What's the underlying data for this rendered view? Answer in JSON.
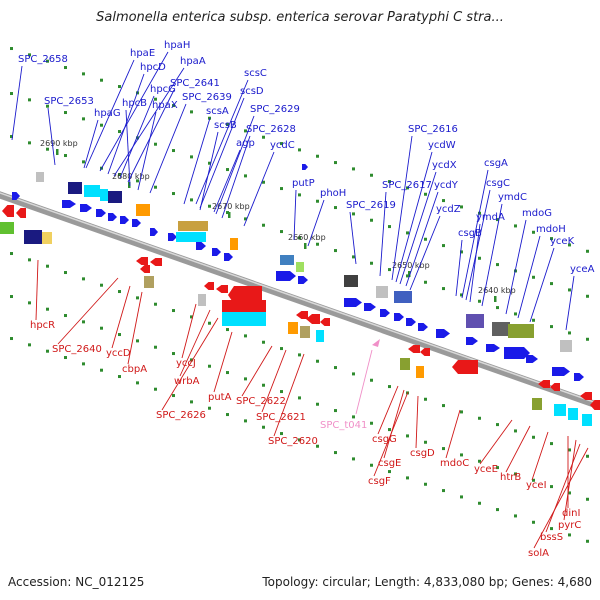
{
  "title": "Salmonella enterica subsp. enterica serovar Paratyphi C stra...",
  "footer": {
    "accession": "Accession: NC_012125",
    "summary": "Topology: circular; Length: 4,833,080 bp; Genes: 4,680"
  },
  "colors": {
    "forward_label": "#1a1acc",
    "reverse_label": "#d01818",
    "rna_label": "#f090c8",
    "forward_feature": "#1a1ae8",
    "reverse_feature": "#e81818",
    "tick": "#2e8b2e",
    "backbone": "#888888"
  },
  "scale_ticks": [
    "2690 kbp",
    "2680 kbp",
    "2670 kbp",
    "2660 kbp",
    "2650 kbp",
    "2640 kbp"
  ],
  "forward_genes": [
    "SPC_2658",
    "SPC_2653",
    "hpaE",
    "hpaH",
    "hpcD",
    "hpaA",
    "hpcG",
    "SPC_2641",
    "hpcB",
    "hpaX",
    "SPC_2639",
    "hpaG",
    "scsC",
    "scsD",
    "scsA",
    "SPC_2629",
    "scsB",
    "SPC_2628",
    "agp",
    "ycdC",
    "putP",
    "phoH",
    "SPC_2619",
    "SPC_2617",
    "SPC_2616",
    "ycdW",
    "ycdX",
    "ycdY",
    "ycdZ",
    "csgB",
    "csgA",
    "csgC",
    "ymdA",
    "ymdC",
    "mdoG",
    "mdoH",
    "yceK",
    "yceA"
  ],
  "reverse_genes": [
    "hpcR",
    "SPC_2640",
    "yccD",
    "cbpA",
    "yccJ",
    "wrbA",
    "SPC_2626",
    "putA",
    "SPC_2622",
    "SPC_2621",
    "SPC_2620",
    "csgG",
    "csgE",
    "csgF",
    "csgD",
    "mdoC",
    "yceE",
    "htrB",
    "yceI",
    "dinI",
    "pyrC",
    "bssS",
    "solA"
  ],
  "rna_genes": [
    "SPC_t041"
  ]
}
